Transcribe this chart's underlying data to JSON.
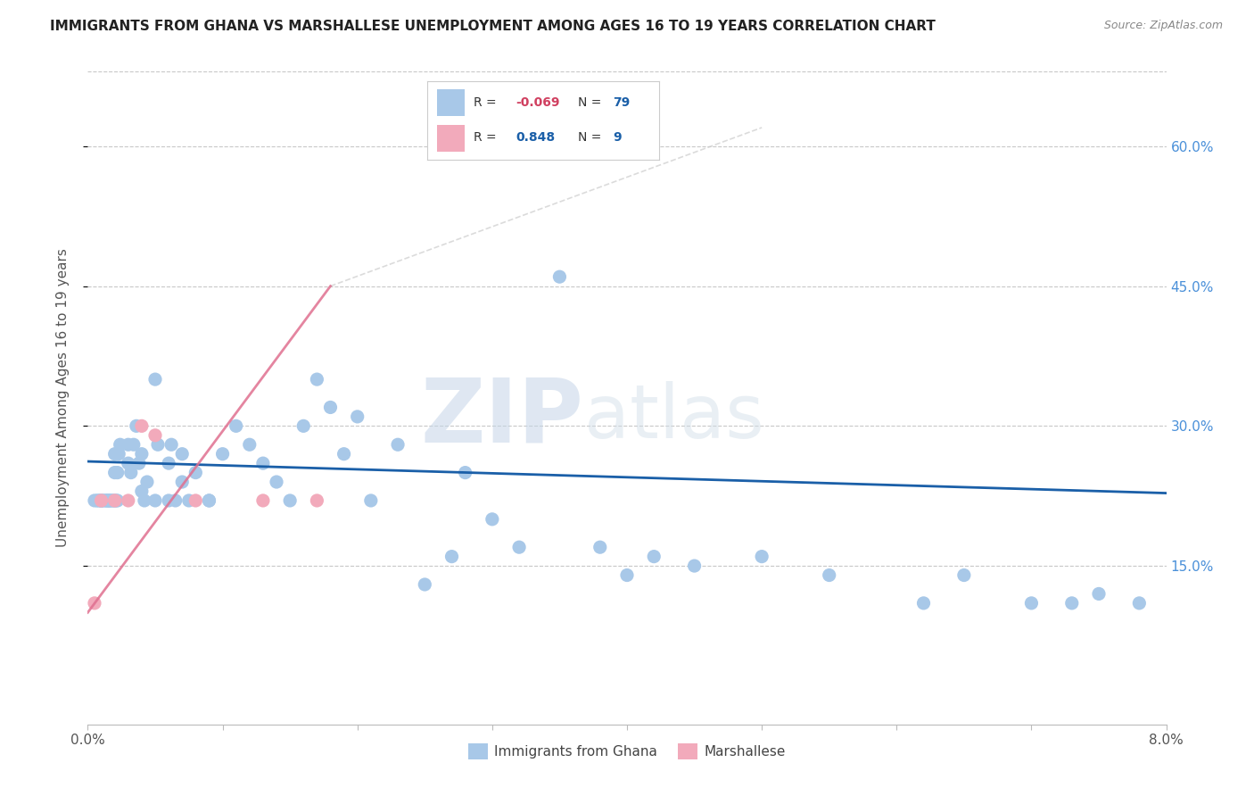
{
  "title": "IMMIGRANTS FROM GHANA VS MARSHALLESE UNEMPLOYMENT AMONG AGES 16 TO 19 YEARS CORRELATION CHART",
  "source": "Source: ZipAtlas.com",
  "ylabel": "Unemployment Among Ages 16 to 19 years",
  "yticks_labels": [
    "15.0%",
    "30.0%",
    "45.0%",
    "60.0%"
  ],
  "ytick_vals": [
    0.15,
    0.3,
    0.45,
    0.6
  ],
  "xlim": [
    0.0,
    0.08
  ],
  "ylim": [
    -0.02,
    0.68
  ],
  "legend_ghana": "Immigrants from Ghana",
  "legend_marshallese": "Marshallese",
  "R_ghana": "-0.069",
  "N_ghana": "79",
  "R_marshallese": "0.848",
  "N_marshallese": "9",
  "ghana_color": "#a8c8e8",
  "marshallese_color": "#f2aabb",
  "trend_ghana_color": "#1a5fa8",
  "trend_marshallese_color": "#e07090",
  "watermark_zip": "ZIP",
  "watermark_atlas": "atlas",
  "background_color": "#ffffff",
  "grid_color": "#c8c8c8",
  "ghana_x": [
    0.0005,
    0.0007,
    0.0008,
    0.001,
    0.001,
    0.001,
    0.001,
    0.0012,
    0.0013,
    0.0014,
    0.0015,
    0.0015,
    0.0016,
    0.0016,
    0.0017,
    0.0018,
    0.0019,
    0.002,
    0.002,
    0.002,
    0.0021,
    0.0022,
    0.0022,
    0.0023,
    0.0024,
    0.003,
    0.003,
    0.0032,
    0.0034,
    0.0036,
    0.0038,
    0.004,
    0.004,
    0.0042,
    0.0044,
    0.005,
    0.005,
    0.0052,
    0.006,
    0.006,
    0.0062,
    0.0065,
    0.007,
    0.007,
    0.0075,
    0.008,
    0.009,
    0.009,
    0.01,
    0.011,
    0.012,
    0.013,
    0.014,
    0.015,
    0.016,
    0.017,
    0.018,
    0.019,
    0.02,
    0.021,
    0.023,
    0.025,
    0.027,
    0.028,
    0.03,
    0.032,
    0.035,
    0.038,
    0.04,
    0.042,
    0.045,
    0.05,
    0.055,
    0.062,
    0.065,
    0.07,
    0.073,
    0.075,
    0.078
  ],
  "ghana_y": [
    0.22,
    0.22,
    0.22,
    0.22,
    0.22,
    0.22,
    0.22,
    0.22,
    0.22,
    0.22,
    0.22,
    0.22,
    0.22,
    0.22,
    0.22,
    0.22,
    0.22,
    0.22,
    0.25,
    0.27,
    0.22,
    0.22,
    0.25,
    0.27,
    0.28,
    0.28,
    0.26,
    0.25,
    0.28,
    0.3,
    0.26,
    0.23,
    0.27,
    0.22,
    0.24,
    0.22,
    0.35,
    0.28,
    0.22,
    0.26,
    0.28,
    0.22,
    0.24,
    0.27,
    0.22,
    0.25,
    0.22,
    0.22,
    0.27,
    0.3,
    0.28,
    0.26,
    0.24,
    0.22,
    0.3,
    0.35,
    0.32,
    0.27,
    0.31,
    0.22,
    0.28,
    0.13,
    0.16,
    0.25,
    0.2,
    0.17,
    0.46,
    0.17,
    0.14,
    0.16,
    0.15,
    0.16,
    0.14,
    0.11,
    0.14,
    0.11,
    0.11,
    0.12,
    0.11
  ],
  "marshallese_x": [
    0.0005,
    0.001,
    0.002,
    0.003,
    0.004,
    0.005,
    0.008,
    0.013,
    0.017
  ],
  "marshallese_y": [
    0.11,
    0.22,
    0.22,
    0.22,
    0.3,
    0.29,
    0.22,
    0.22,
    0.22
  ]
}
